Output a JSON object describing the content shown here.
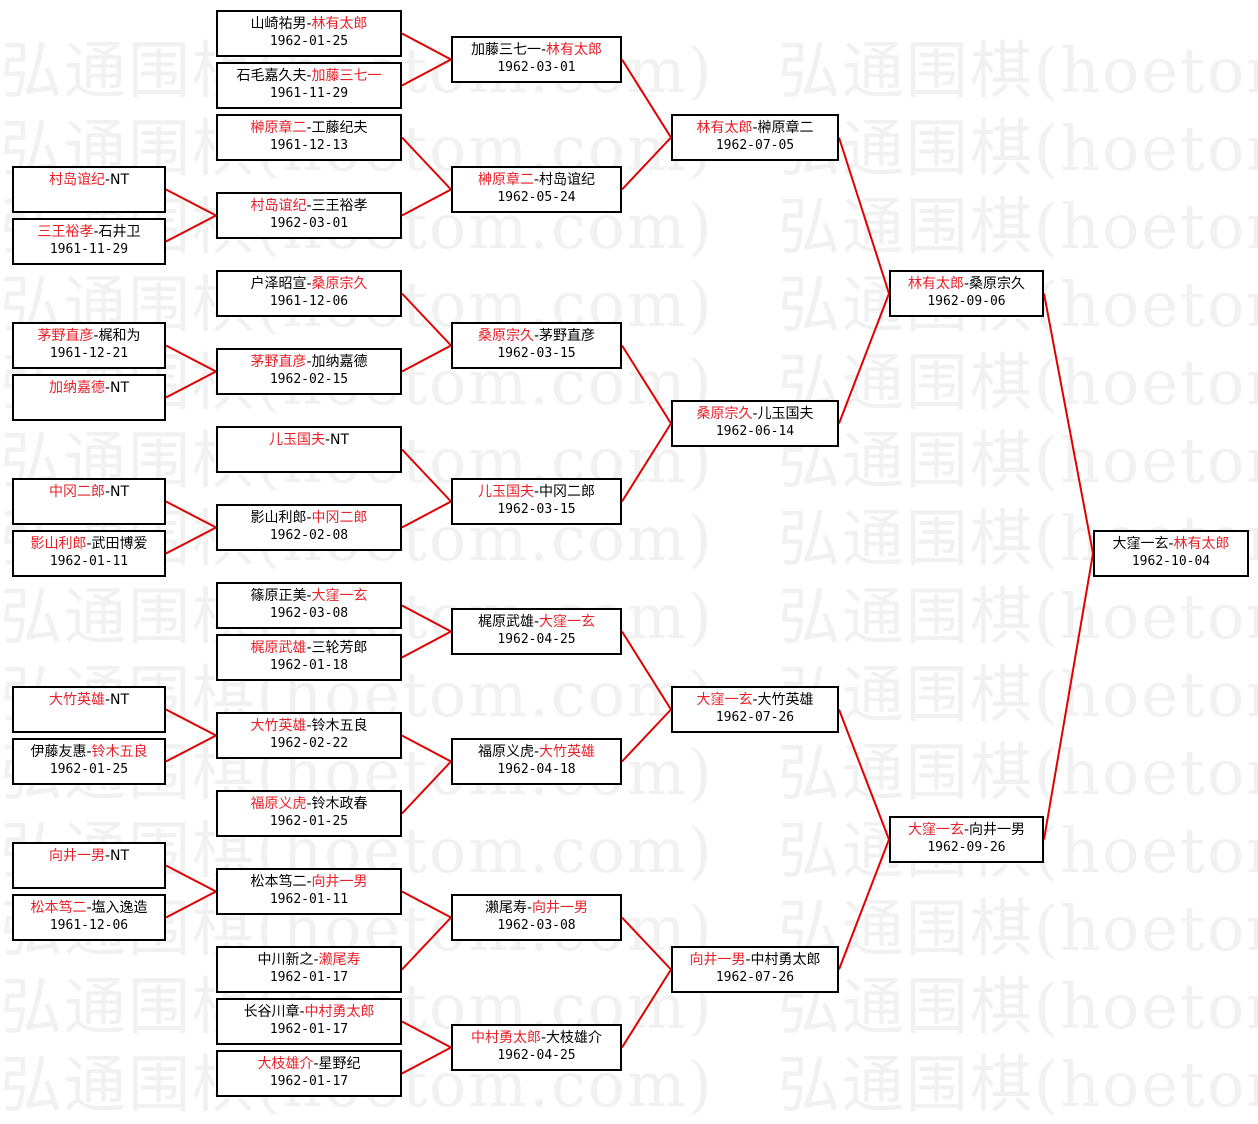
{
  "watermark": "弘通围棋(hoetom.com)",
  "colors": {
    "winner": "#e8202a",
    "connector": "#e00000",
    "border": "#000000"
  },
  "rounds": [
    [
      {
        "p1": "村岛谊纪",
        "p2": "NT",
        "winner": 1,
        "date": ""
      },
      {
        "p1": "三王裕孝",
        "p2": "石井卫",
        "winner": 1,
        "date": "1961-11-29"
      },
      {
        "p1": "茅野直彦",
        "p2": "梶和为",
        "winner": 1,
        "date": "1961-12-21"
      },
      {
        "p1": "加纳嘉德",
        "p2": "NT",
        "winner": 1,
        "date": ""
      },
      {
        "p1": "中冈二郎",
        "p2": "NT",
        "winner": 1,
        "date": ""
      },
      {
        "p1": "影山利郎",
        "p2": "武田博爱",
        "winner": 1,
        "date": "1962-01-11"
      },
      {
        "p1": "大竹英雄",
        "p2": "NT",
        "winner": 1,
        "date": ""
      },
      {
        "p1": "伊藤友惠",
        "p2": "铃木五良",
        "winner": 2,
        "date": "1962-01-25"
      },
      {
        "p1": "向井一男",
        "p2": "NT",
        "winner": 1,
        "date": ""
      },
      {
        "p1": "松本笃二",
        "p2": "塩入逸造",
        "winner": 1,
        "date": "1961-12-06"
      }
    ],
    [
      {
        "p1": "山崎祐男",
        "p2": "林有太郎",
        "winner": 2,
        "date": "1962-01-25"
      },
      {
        "p1": "石毛嘉久夫",
        "p2": "加藤三七一",
        "winner": 2,
        "date": "1961-11-29"
      },
      {
        "p1": "榊原章二",
        "p2": "工藤纪夫",
        "winner": 1,
        "date": "1961-12-13"
      },
      {
        "p1": "村岛谊纪",
        "p2": "三王裕孝",
        "winner": 1,
        "date": "1962-03-01"
      },
      {
        "p1": "户泽昭宣",
        "p2": "桑原宗久",
        "winner": 2,
        "date": "1961-12-06"
      },
      {
        "p1": "茅野直彦",
        "p2": "加纳嘉德",
        "winner": 1,
        "date": "1962-02-15"
      },
      {
        "p1": "儿玉国夫",
        "p2": "NT",
        "winner": 1,
        "date": ""
      },
      {
        "p1": "影山利郎",
        "p2": "中冈二郎",
        "winner": 2,
        "date": "1962-02-08"
      },
      {
        "p1": "篠原正美",
        "p2": "大窪一玄",
        "winner": 2,
        "date": "1962-03-08"
      },
      {
        "p1": "梶原武雄",
        "p2": "三轮芳郎",
        "winner": 1,
        "date": "1962-01-18"
      },
      {
        "p1": "大竹英雄",
        "p2": "铃木五良",
        "winner": 1,
        "date": "1962-02-22"
      },
      {
        "p1": "福原义虎",
        "p2": "铃木政春",
        "winner": 1,
        "date": "1962-01-25"
      },
      {
        "p1": "松本笃二",
        "p2": "向井一男",
        "winner": 2,
        "date": "1962-01-11"
      },
      {
        "p1": "中川新之",
        "p2": "濑尾寿",
        "winner": 2,
        "date": "1962-01-17"
      },
      {
        "p1": "长谷川章",
        "p2": "中村勇太郎",
        "winner": 2,
        "date": "1962-01-17"
      },
      {
        "p1": "大枝雄介",
        "p2": "星野纪",
        "winner": 1,
        "date": "1962-01-17"
      }
    ],
    [
      {
        "p1": "加藤三七一",
        "p2": "林有太郎",
        "winner": 2,
        "date": "1962-03-01"
      },
      {
        "p1": "榊原章二",
        "p2": "村岛谊纪",
        "winner": 1,
        "date": "1962-05-24"
      },
      {
        "p1": "桑原宗久",
        "p2": "茅野直彦",
        "winner": 1,
        "date": "1962-03-15"
      },
      {
        "p1": "儿玉国夫",
        "p2": "中冈二郎",
        "winner": 1,
        "date": "1962-03-15"
      },
      {
        "p1": "梶原武雄",
        "p2": "大窪一玄",
        "winner": 2,
        "date": "1962-04-25"
      },
      {
        "p1": "福原义虎",
        "p2": "大竹英雄",
        "winner": 2,
        "date": "1962-04-18"
      },
      {
        "p1": "濑尾寿",
        "p2": "向井一男",
        "winner": 2,
        "date": "1962-03-08"
      },
      {
        "p1": "中村勇太郎",
        "p2": "大枝雄介",
        "winner": 1,
        "date": "1962-04-25"
      }
    ],
    [
      {
        "p1": "林有太郎",
        "p2": "榊原章二",
        "winner": 1,
        "date": "1962-07-05"
      },
      {
        "p1": "桑原宗久",
        "p2": "儿玉国夫",
        "winner": 1,
        "date": "1962-06-14"
      },
      {
        "p1": "大窪一玄",
        "p2": "大竹英雄",
        "winner": 1,
        "date": "1962-07-26"
      },
      {
        "p1": "向井一男",
        "p2": "中村勇太郎",
        "winner": 1,
        "date": "1962-07-26"
      }
    ],
    [
      {
        "p1": "林有太郎",
        "p2": "桑原宗久",
        "winner": 1,
        "date": "1962-09-06"
      },
      {
        "p1": "大窪一玄",
        "p2": "向井一男",
        "winner": 1,
        "date": "1962-09-26"
      }
    ],
    [
      {
        "p1": "大窪一玄",
        "p2": "林有太郎",
        "winner": 2,
        "date": "1962-10-04"
      }
    ]
  ]
}
